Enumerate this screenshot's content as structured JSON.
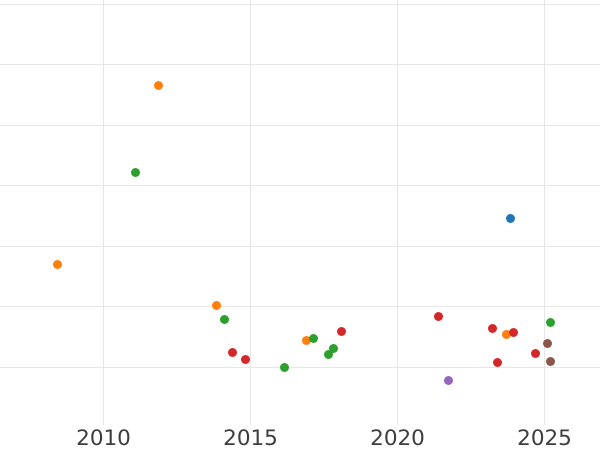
{
  "chart_data": {
    "type": "scatter",
    "title": "",
    "xlabel": "",
    "ylabel": "",
    "grid": "on",
    "legend": "none",
    "x_ticks": [
      2010,
      2015,
      2020,
      2025
    ],
    "x_tick_labels": [
      "2010",
      "2015",
      "2020",
      "2025"
    ],
    "xlim": [
      2006.5,
      2026.9
    ],
    "ylim": [
      0,
      7.07
    ],
    "y_gridline_units": [
      1,
      2,
      3,
      4,
      5,
      6,
      7
    ],
    "y_tick_labels_visible": false,
    "colors": {
      "gridline": "#e6e6e6",
      "tick_label": "#3d3d3d",
      "background": "#ffffff"
    },
    "series": [
      {
        "name": "blue",
        "color": "#1f77b4",
        "points": [
          {
            "x": 2023.86,
            "y": 3.46
          }
        ]
      },
      {
        "name": "orange",
        "color": "#ff7f0e",
        "points": [
          {
            "x": 2008.45,
            "y": 2.7
          },
          {
            "x": 2011.88,
            "y": 5.66
          },
          {
            "x": 2013.85,
            "y": 2.02
          },
          {
            "x": 2016.91,
            "y": 1.43
          },
          {
            "x": 2023.71,
            "y": 1.54
          }
        ]
      },
      {
        "name": "green",
        "color": "#2ca02c",
        "points": [
          {
            "x": 2011.1,
            "y": 4.21
          },
          {
            "x": 2014.13,
            "y": 1.78
          },
          {
            "x": 2016.16,
            "y": 0.99
          },
          {
            "x": 2017.15,
            "y": 1.47
          },
          {
            "x": 2017.65,
            "y": 1.21
          },
          {
            "x": 2017.84,
            "y": 1.3
          },
          {
            "x": 2025.19,
            "y": 1.73
          }
        ]
      },
      {
        "name": "red",
        "color": "#d62728",
        "points": [
          {
            "x": 2014.38,
            "y": 1.24
          },
          {
            "x": 2014.84,
            "y": 1.13
          },
          {
            "x": 2018.1,
            "y": 1.58
          },
          {
            "x": 2021.39,
            "y": 1.83
          },
          {
            "x": 2023.24,
            "y": 1.64
          },
          {
            "x": 2023.39,
            "y": 1.07
          },
          {
            "x": 2023.94,
            "y": 1.57
          },
          {
            "x": 2024.68,
            "y": 1.23
          }
        ]
      },
      {
        "name": "purple",
        "color": "#9467bd",
        "points": [
          {
            "x": 2021.73,
            "y": 0.77
          }
        ]
      },
      {
        "name": "brown",
        "color": "#8c564b",
        "points": [
          {
            "x": 2025.1,
            "y": 1.39
          },
          {
            "x": 2025.21,
            "y": 1.09
          }
        ]
      }
    ]
  }
}
